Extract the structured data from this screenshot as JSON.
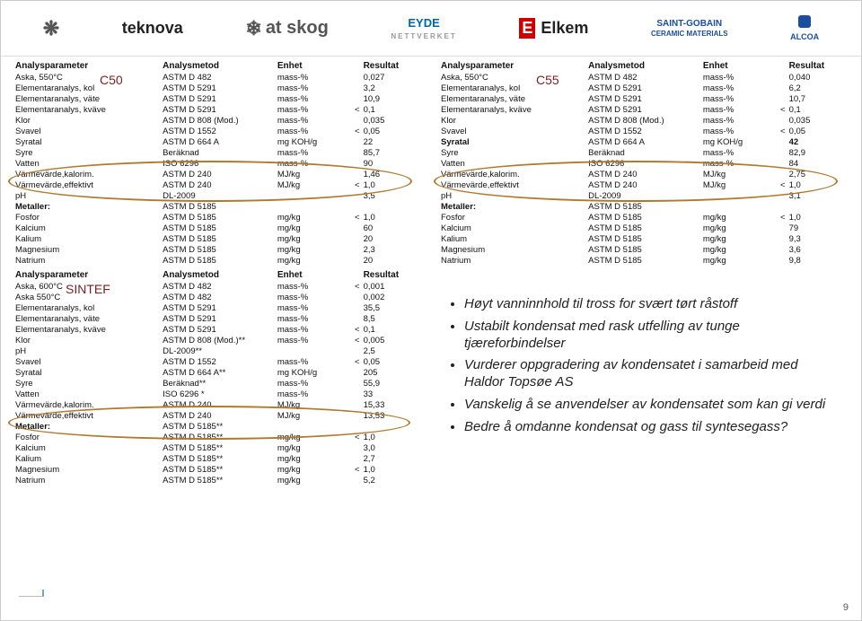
{
  "logos": {
    "teknova": "teknova",
    "atskog": "at skog",
    "eyde": "EYDE",
    "eyde_sub": "NETTVERKET",
    "elkem": "Elkem",
    "sg1": "SAINT-GOBAIN",
    "sg2": "CERAMIC MATERIALS",
    "alcoa": "ALCOA"
  },
  "labels": {
    "c50": "C50",
    "c55": "C55",
    "sintef": "SINTEF"
  },
  "headers": {
    "p": "Analysparameter",
    "m": "Analysmetod",
    "e": "Enhet",
    "r": "Resultat"
  },
  "c50": {
    "rows": [
      [
        "Aska, 550°C",
        "ASTM D 482",
        "mass-%",
        "",
        "0,027",
        false
      ],
      [
        "Elementaranalys, kol",
        "ASTM D 5291",
        "mass-%",
        "",
        "3,2",
        false
      ],
      [
        "Elementaranalys, väte",
        "ASTM D 5291",
        "mass-%",
        "",
        "10,9",
        false
      ],
      [
        "Elementaranalys, kväve",
        "ASTM D 5291",
        "mass-%",
        "<",
        "0,1",
        false
      ],
      [
        "Klor",
        "ASTM D 808 (Mod.)",
        "mass-%",
        "",
        "0,035",
        false
      ],
      [
        "Svavel",
        "ASTM D 1552",
        "mass-%",
        "<",
        "0,05",
        false
      ],
      [
        "Syratal",
        "ASTM D 664 A",
        "mg KOH/g",
        "",
        "22",
        false
      ],
      [
        "Syre",
        "Beräknad",
        "mass-%",
        "",
        "85,7",
        false
      ],
      [
        "Vatten",
        "ISO 6296",
        "mass-%",
        "",
        "90",
        false
      ],
      [
        "Värmevärde,kalorim.",
        "ASTM D 240",
        "MJ/kg",
        "",
        "1,46",
        false
      ],
      [
        "Värmevärde,effektivt",
        "ASTM D 240",
        "MJ/kg",
        "<",
        "1,0",
        false
      ],
      [
        "pH",
        "DL-2009",
        "",
        "",
        "3,5",
        false
      ],
      [
        "Metaller:",
        "ASTM D 5185",
        "",
        "",
        "",
        true
      ],
      [
        "Fosfor",
        "ASTM D 5185",
        "mg/kg",
        "<",
        "1,0",
        false
      ],
      [
        "Kalcium",
        "ASTM D 5185",
        "mg/kg",
        "",
        "60",
        false
      ],
      [
        "Kalium",
        "ASTM D 5185",
        "mg/kg",
        "",
        "20",
        false
      ],
      [
        "Magnesium",
        "ASTM D 5185",
        "mg/kg",
        "",
        "2,3",
        false
      ],
      [
        "Natrium",
        "ASTM D 5185",
        "mg/kg",
        "",
        "20",
        false
      ]
    ]
  },
  "c55": {
    "rows": [
      [
        "Aska, 550°C",
        "ASTM D 482",
        "mass-%",
        "",
        "0,040",
        false
      ],
      [
        "Elementaranalys, kol",
        "ASTM D 5291",
        "mass-%",
        "",
        "6,2",
        false
      ],
      [
        "Elementaranalys, väte",
        "ASTM D 5291",
        "mass-%",
        "",
        "10,7",
        false
      ],
      [
        "Elementaranalys, kväve",
        "ASTM D 5291",
        "mass-%",
        "<",
        "0,1",
        false
      ],
      [
        "Klor",
        "ASTM D 808 (Mod.)",
        "mass-%",
        "",
        "0,035",
        false
      ],
      [
        "Svavel",
        "ASTM D 1552",
        "mass-%",
        "<",
        "0,05",
        false
      ],
      [
        "Syratal",
        "ASTM D 664 A",
        "mg KOH/g",
        "",
        "42",
        true
      ],
      [
        "Syre",
        "Beräknad",
        "mass-%",
        "",
        "82,9",
        false
      ],
      [
        "Vatten",
        "ISO 6296",
        "mass-%",
        "",
        "84",
        false
      ],
      [
        "Värmevärde,kalorim.",
        "ASTM D 240",
        "MJ/kg",
        "",
        "2,75",
        false
      ],
      [
        "Värmevärde,effektivt",
        "ASTM D 240",
        "MJ/kg",
        "<",
        "1,0",
        false
      ],
      [
        "pH",
        "DL-2009",
        "",
        "",
        "3,1",
        false
      ],
      [
        "Metaller:",
        "ASTM D 5185",
        "",
        "",
        "",
        true
      ],
      [
        "Fosfor",
        "ASTM D 5185",
        "mg/kg",
        "<",
        "1,0",
        false
      ],
      [
        "Kalcium",
        "ASTM D 5185",
        "mg/kg",
        "",
        "79",
        false
      ],
      [
        "Kalium",
        "ASTM D 5185",
        "mg/kg",
        "",
        "9,3",
        false
      ],
      [
        "Magnesium",
        "ASTM D 5185",
        "mg/kg",
        "",
        "3,6",
        false
      ],
      [
        "Natrium",
        "ASTM D 5185",
        "mg/kg",
        "",
        "9,8",
        false
      ]
    ]
  },
  "sintef": {
    "rows": [
      [
        "Aska, 600°C",
        "ASTM D 482",
        "mass-%",
        "<",
        "0,001",
        false
      ],
      [
        "Aska 550°C",
        "ASTM D 482",
        "mass-%",
        "",
        "0,002",
        false
      ],
      [
        "Elementaranalys, kol",
        "ASTM D 5291",
        "mass-%",
        "",
        "35,5",
        false
      ],
      [
        "Elementaranalys, väte",
        "ASTM D 5291",
        "mass-%",
        "",
        "8,5",
        false
      ],
      [
        "Elementaranalys, kväve",
        "ASTM D 5291",
        "mass-%",
        "<",
        "0,1",
        false
      ],
      [
        "Klor",
        "ASTM D 808 (Mod.)**",
        "mass-%",
        "<",
        "0,005",
        false
      ],
      [
        "pH",
        "DL-2009**",
        "",
        "",
        "2,5",
        false
      ],
      [
        "Svavel",
        "ASTM D 1552",
        "mass-%",
        "<",
        "0,05",
        false
      ],
      [
        "Syratal",
        "ASTM D 664 A**",
        "mg KOH/g",
        "",
        "205",
        false
      ],
      [
        "Syre",
        "Beräknad**",
        "mass-%",
        "",
        "55,9",
        false
      ],
      [
        "Vatten",
        "ISO 6296 *",
        "mass-%",
        "",
        "33",
        false
      ],
      [
        "Värmevärde,kalorim.",
        "ASTM D 240",
        "MJ/kg",
        "",
        "15,33",
        false
      ],
      [
        "Värmevärde,effektivt",
        "ASTM D 240",
        "MJ/kg",
        "",
        "13,53",
        false
      ],
      [
        "Metaller:",
        "ASTM D 5185**",
        "",
        "",
        "",
        true
      ],
      [
        "Fosfor",
        "ASTM D 5185**",
        "mg/kg",
        "<",
        "1,0",
        false
      ],
      [
        "Kalcium",
        "ASTM D 5185**",
        "mg/kg",
        "",
        "3,0",
        false
      ],
      [
        "Kalium",
        "ASTM D 5185**",
        "mg/kg",
        "",
        "2,7",
        false
      ],
      [
        "Magnesium",
        "ASTM D 5185**",
        "mg/kg",
        "<",
        "1,0",
        false
      ],
      [
        "Natrium",
        "ASTM D 5185**",
        "mg/kg",
        "",
        "5,2",
        false
      ]
    ]
  },
  "bullets": [
    "Høyt vanninnhold til tross for svært tørt råstoff",
    "Ustabilt kondensat med rask utfelling av tunge tjæreforbindelser",
    "Vurderer oppgradering av kondensatet i samarbeid med Haldor Topsøe AS",
    "Vanskelig å se anvendelser av kondensatet som kan gi verdi",
    "Bedre å omdanne kondensat og gass til syntesegass?"
  ],
  "page": "9",
  "ellipse_color": "#b07a2e"
}
